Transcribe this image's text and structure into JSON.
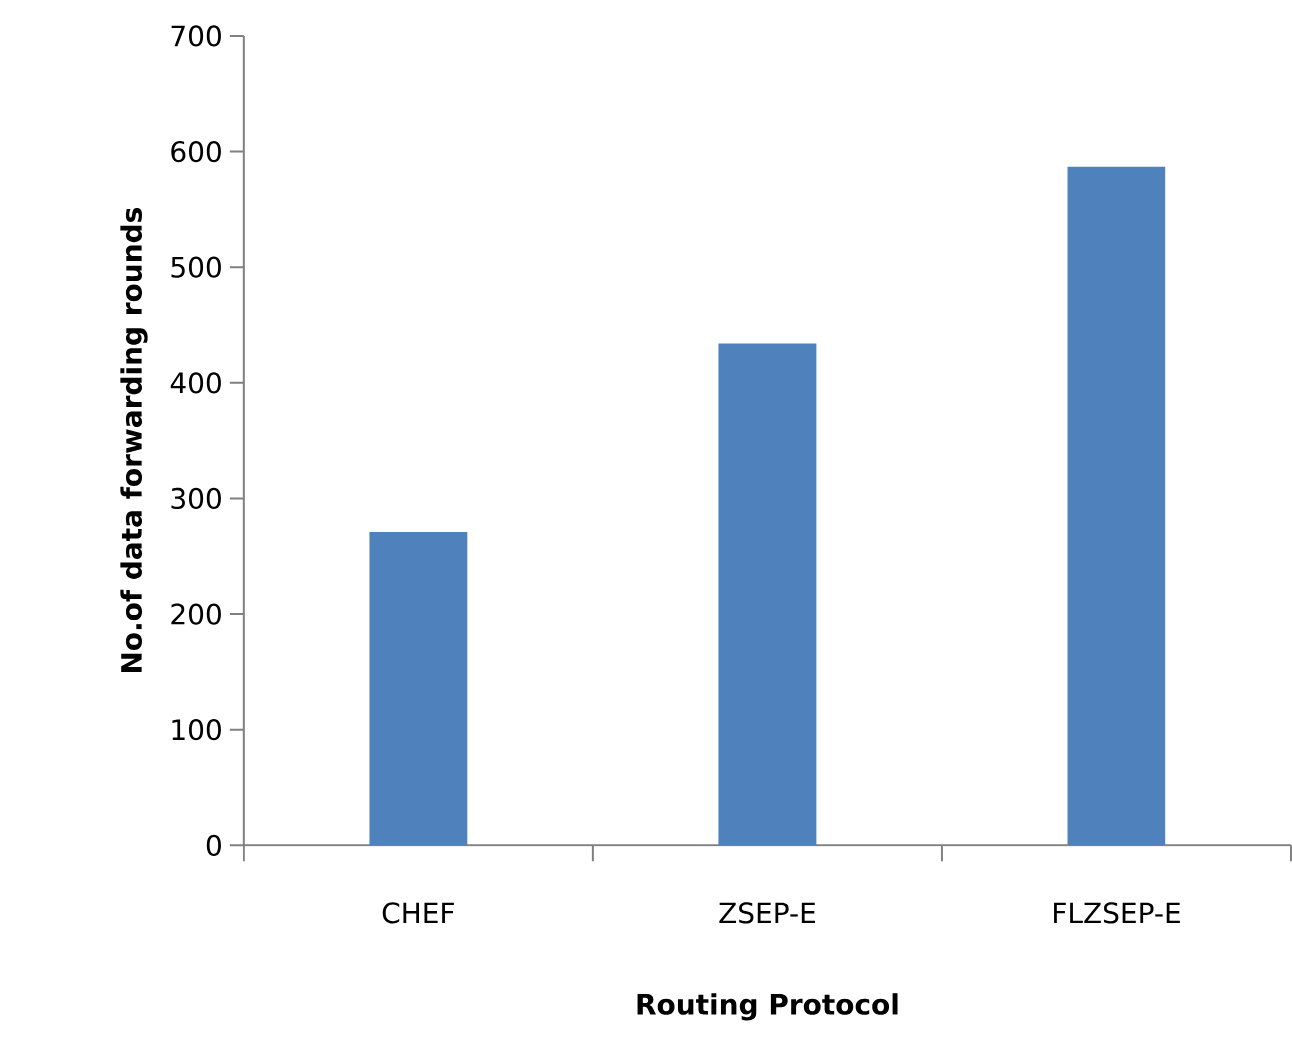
{
  "chart_data": {
    "type": "bar",
    "xlabel": "Routing Protocol",
    "ylabel": "No.of data forwarding rounds",
    "categories": [
      "CHEF",
      "ZSEP-E",
      "FLZSEP-E"
    ],
    "values": [
      271,
      434,
      587
    ],
    "color": "#4f81bd",
    "ylim": [
      0,
      700
    ],
    "yticks": [
      0,
      100,
      200,
      300,
      400,
      500,
      600,
      700
    ],
    "grid": false
  }
}
